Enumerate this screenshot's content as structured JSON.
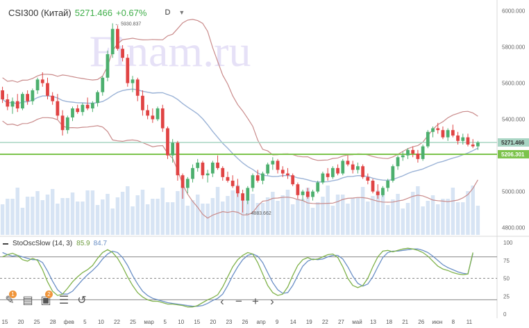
{
  "header": {
    "symbol": "CSI300 (Китай)",
    "price": "5271.466",
    "change": "+0.67%",
    "timeframe": "D"
  },
  "watermark": "Finam.ru",
  "colors": {
    "up": "#4caf6e",
    "down": "#e04343",
    "volume": "#d7e4f4",
    "ma": "#9ab2d6",
    "band": "#c98a8a",
    "support": "#7cc34b",
    "current": "#a9d5c4",
    "stoch_k": "#7fb24a",
    "stoch_d": "#6a8fc6"
  },
  "indicator": {
    "name": "StoOscSlow (14, 3)",
    "k_value": "85.9",
    "d_value": "84.7"
  },
  "price_axis": [
    "6000.000",
    "5800.000",
    "5600.000",
    "5400.000",
    "5000.000",
    "4800.000"
  ],
  "price_labels": {
    "current": "5271.466",
    "support": "5206.301"
  },
  "annotations": {
    "high": "5930.837",
    "low": "4883.662"
  },
  "stoch_axis": [
    "100",
    "75",
    "50",
    "25",
    "0"
  ],
  "x_axis": [
    "15",
    "20",
    "25",
    "28",
    "фев",
    "5",
    "10",
    "22",
    "25",
    "мар",
    "5",
    "10",
    "15",
    "20",
    "23",
    "26",
    "апр",
    "9",
    "14",
    "19",
    "22",
    "27",
    "май",
    "13",
    "18",
    "21",
    "26",
    "июн",
    "8",
    "11"
  ],
  "toolbar": {
    "icons": [
      "pencil-icon",
      "template-icon",
      "layers-icon",
      "settings-icon",
      "reset-icon"
    ],
    "badges": [
      "1",
      "2"
    ],
    "nav": [
      "‹",
      "−",
      "+",
      "›"
    ]
  },
  "chart_data": {
    "type": "candlestick",
    "ylim": [
      4760,
      6060
    ],
    "stoch_ylim": [
      0,
      100
    ],
    "candles": [
      [
        5560,
        5580,
        5490,
        5510
      ],
      [
        5510,
        5540,
        5450,
        5470
      ],
      [
        5470,
        5520,
        5430,
        5500
      ],
      [
        5500,
        5540,
        5440,
        5460
      ],
      [
        5460,
        5550,
        5450,
        5540
      ],
      [
        5540,
        5560,
        5480,
        5500
      ],
      [
        5500,
        5570,
        5480,
        5560
      ],
      [
        5560,
        5630,
        5540,
        5620
      ],
      [
        5620,
        5660,
        5580,
        5600
      ],
      [
        5600,
        5630,
        5510,
        5530
      ],
      [
        5530,
        5550,
        5480,
        5500
      ],
      [
        5500,
        5540,
        5400,
        5420
      ],
      [
        5420,
        5450,
        5310,
        5340
      ],
      [
        5340,
        5420,
        5320,
        5410
      ],
      [
        5410,
        5470,
        5390,
        5460
      ],
      [
        5460,
        5480,
        5430,
        5440
      ],
      [
        5440,
        5490,
        5420,
        5480
      ],
      [
        5480,
        5520,
        5450,
        5460
      ],
      [
        5460,
        5500,
        5440,
        5490
      ],
      [
        5490,
        5560,
        5470,
        5550
      ],
      [
        5550,
        5640,
        5530,
        5630
      ],
      [
        5630,
        5780,
        5610,
        5760
      ],
      [
        5760,
        5931,
        5740,
        5900
      ],
      [
        5900,
        5920,
        5780,
        5790
      ],
      [
        5790,
        5810,
        5720,
        5740
      ],
      [
        5740,
        5760,
        5580,
        5600
      ],
      [
        5600,
        5640,
        5550,
        5620
      ],
      [
        5620,
        5630,
        5500,
        5530
      ],
      [
        5530,
        5560,
        5420,
        5450
      ],
      [
        5450,
        5480,
        5400,
        5420
      ],
      [
        5420,
        5460,
        5380,
        5400
      ],
      [
        5400,
        5470,
        5390,
        5460
      ],
      [
        5460,
        5480,
        5330,
        5350
      ],
      [
        5350,
        5360,
        5180,
        5200
      ],
      [
        5200,
        5290,
        5160,
        5270
      ],
      [
        5270,
        5280,
        5060,
        5090
      ],
      [
        5090,
        5100,
        4960,
        5020
      ],
      [
        5020,
        5080,
        4990,
        5070
      ],
      [
        5070,
        5150,
        5050,
        5130
      ],
      [
        5130,
        5180,
        5110,
        5160
      ],
      [
        5160,
        5170,
        5070,
        5090
      ],
      [
        5090,
        5120,
        5050,
        5100
      ],
      [
        5100,
        5170,
        5080,
        5160
      ],
      [
        5160,
        5200,
        5120,
        5130
      ],
      [
        5130,
        5140,
        5060,
        5080
      ],
      [
        5080,
        5110,
        5050,
        5060
      ],
      [
        5060,
        5090,
        5020,
        5030
      ],
      [
        5030,
        5070,
        4970,
        4990
      ],
      [
        4990,
        5010,
        4884,
        4950
      ],
      [
        4950,
        5030,
        4930,
        5020
      ],
      [
        5020,
        5100,
        5000,
        5090
      ],
      [
        5090,
        5120,
        5050,
        5060
      ],
      [
        5060,
        5110,
        5040,
        5100
      ],
      [
        5100,
        5160,
        5090,
        5150
      ],
      [
        5150,
        5190,
        5120,
        5170
      ],
      [
        5170,
        5180,
        5100,
        5120
      ],
      [
        5120,
        5140,
        5080,
        5100
      ],
      [
        5100,
        5130,
        5070,
        5090
      ],
      [
        5090,
        5100,
        5030,
        5040
      ],
      [
        5040,
        5050,
        4960,
        4980
      ],
      [
        4980,
        5010,
        4950,
        5000
      ],
      [
        5000,
        5020,
        4960,
        4970
      ],
      [
        4970,
        5010,
        4950,
        5000
      ],
      [
        5000,
        5060,
        4990,
        5050
      ],
      [
        5050,
        5110,
        5040,
        5100
      ],
      [
        5100,
        5130,
        5060,
        5080
      ],
      [
        5080,
        5140,
        5070,
        5130
      ],
      [
        5130,
        5150,
        5090,
        5100
      ],
      [
        5100,
        5180,
        5090,
        5170
      ],
      [
        5170,
        5200,
        5140,
        5150
      ],
      [
        5150,
        5170,
        5100,
        5120
      ],
      [
        5120,
        5160,
        5100,
        5140
      ],
      [
        5140,
        5150,
        5070,
        5080
      ],
      [
        5080,
        5100,
        5040,
        5060
      ],
      [
        5060,
        5070,
        4990,
        5000
      ],
      [
        5000,
        5040,
        4960,
        4980
      ],
      [
        4980,
        5030,
        4970,
        5020
      ],
      [
        5020,
        5070,
        5000,
        5060
      ],
      [
        5060,
        5150,
        5050,
        5140
      ],
      [
        5140,
        5200,
        5120,
        5190
      ],
      [
        5190,
        5220,
        5170,
        5200
      ],
      [
        5200,
        5240,
        5180,
        5230
      ],
      [
        5230,
        5250,
        5190,
        5210
      ],
      [
        5210,
        5230,
        5160,
        5180
      ],
      [
        5180,
        5260,
        5170,
        5250
      ],
      [
        5250,
        5340,
        5240,
        5330
      ],
      [
        5330,
        5360,
        5300,
        5350
      ],
      [
        5350,
        5380,
        5320,
        5340
      ],
      [
        5340,
        5360,
        5290,
        5300
      ],
      [
        5300,
        5350,
        5280,
        5340
      ],
      [
        5340,
        5370,
        5300,
        5310
      ],
      [
        5310,
        5330,
        5260,
        5280
      ],
      [
        5280,
        5320,
        5260,
        5300
      ],
      [
        5300,
        5320,
        5250,
        5260
      ],
      [
        5260,
        5290,
        5240,
        5250
      ],
      [
        5250,
        5280,
        5230,
        5271
      ]
    ],
    "stoch_k": [
      80,
      83,
      85,
      82,
      76,
      74,
      78,
      75,
      62,
      45,
      32,
      26,
      28,
      36,
      45,
      52,
      58,
      62,
      68,
      78,
      86,
      90,
      86,
      78,
      66,
      52,
      40,
      30,
      24,
      20,
      18,
      18,
      16,
      14,
      14,
      13,
      12,
      10,
      10,
      12,
      16,
      20,
      23,
      27,
      38,
      52,
      66,
      76,
      82,
      86,
      84,
      72,
      56,
      40,
      30,
      26,
      28,
      38,
      54,
      68,
      76,
      79,
      76,
      77,
      80,
      83,
      84,
      79,
      66,
      50,
      40,
      37,
      40,
      50,
      66,
      80,
      88,
      89,
      87,
      89,
      91,
      92,
      91,
      89,
      86,
      81,
      74,
      67,
      63,
      61,
      58,
      56,
      55,
      56,
      86
    ],
    "stoch_d": [
      86,
      83,
      81,
      82,
      80,
      78,
      76,
      76,
      72,
      60,
      46,
      34,
      28,
      28,
      32,
      40,
      48,
      55,
      61,
      68,
      77,
      84,
      88,
      86,
      79,
      68,
      54,
      42,
      32,
      26,
      22,
      20,
      18,
      16,
      15,
      14,
      13,
      12,
      11,
      11,
      12,
      15,
      19,
      22,
      28,
      40,
      54,
      66,
      76,
      82,
      84,
      81,
      72,
      58,
      44,
      34,
      29,
      30,
      40,
      54,
      67,
      74,
      77,
      76,
      77,
      80,
      82,
      82,
      77,
      66,
      53,
      43,
      39,
      42,
      52,
      66,
      79,
      86,
      88,
      88,
      89,
      90,
      91,
      91,
      89,
      86,
      81,
      75,
      69,
      65,
      62,
      59,
      57,
      56,
      84.7
    ]
  }
}
